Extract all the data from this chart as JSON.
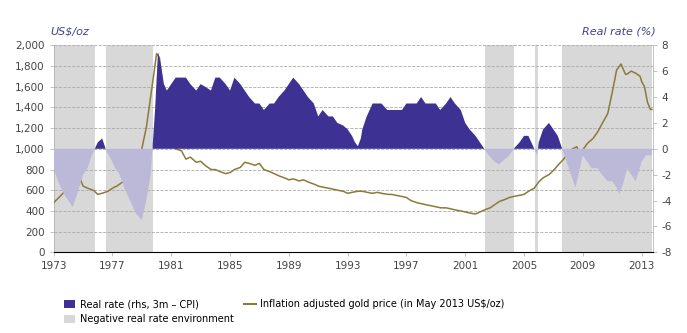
{
  "title_left": "US$/oz",
  "title_right": "Real rate (%)",
  "xlim": [
    1973,
    2013.75
  ],
  "ylim_left": [
    0,
    2000
  ],
  "ylim_right": [
    -8,
    8
  ],
  "yticks_left": [
    0,
    200,
    400,
    600,
    800,
    1000,
    1200,
    1400,
    1600,
    1800,
    2000
  ],
  "yticks_right": [
    -8,
    -6,
    -4,
    -2,
    0,
    2,
    4,
    6,
    8
  ],
  "xticks": [
    1973,
    1977,
    1981,
    1985,
    1989,
    1993,
    1997,
    2001,
    2005,
    2009,
    2013
  ],
  "background_color": "#ffffff",
  "grid_color": "#555555",
  "shaded_color": "#d8d8d8",
  "real_rate_pos_color": "#3d3194",
  "real_rate_neg_color": "#bbb8d8",
  "gold_line_color": "#8b7a3a",
  "legend_labels": [
    "Real rate (rhs, 3m – CPI)",
    "Negative real rate environment",
    "Inflation adjusted gold price (in May 2013 US$/oz)"
  ],
  "real_rate_control": [
    [
      1973.0,
      -1.5
    ],
    [
      1973.3,
      -2.5
    ],
    [
      1973.7,
      -3.5
    ],
    [
      1974.0,
      -4.0
    ],
    [
      1974.3,
      -4.5
    ],
    [
      1974.6,
      -3.5
    ],
    [
      1975.0,
      -2.0
    ],
    [
      1975.3,
      -1.5
    ],
    [
      1975.6,
      -0.5
    ],
    [
      1976.0,
      0.5
    ],
    [
      1976.3,
      0.8
    ],
    [
      1976.6,
      -0.2
    ],
    [
      1976.9,
      -0.8
    ],
    [
      1977.2,
      -1.5
    ],
    [
      1977.5,
      -2.0
    ],
    [
      1977.8,
      -3.0
    ],
    [
      1978.2,
      -4.0
    ],
    [
      1978.6,
      -5.0
    ],
    [
      1979.0,
      -5.5
    ],
    [
      1979.3,
      -4.0
    ],
    [
      1979.6,
      -2.0
    ],
    [
      1979.9,
      3.0
    ],
    [
      1980.1,
      7.5
    ],
    [
      1980.3,
      6.5
    ],
    [
      1980.5,
      5.0
    ],
    [
      1980.7,
      4.5
    ],
    [
      1981.0,
      5.0
    ],
    [
      1981.3,
      5.5
    ],
    [
      1981.6,
      5.5
    ],
    [
      1982.0,
      5.5
    ],
    [
      1982.3,
      5.0
    ],
    [
      1982.7,
      4.5
    ],
    [
      1983.0,
      5.0
    ],
    [
      1983.3,
      4.8
    ],
    [
      1983.7,
      4.5
    ],
    [
      1984.0,
      5.5
    ],
    [
      1984.3,
      5.5
    ],
    [
      1984.7,
      5.0
    ],
    [
      1985.0,
      4.5
    ],
    [
      1985.3,
      5.5
    ],
    [
      1985.7,
      5.0
    ],
    [
      1986.0,
      4.5
    ],
    [
      1986.3,
      4.0
    ],
    [
      1986.7,
      3.5
    ],
    [
      1987.0,
      3.5
    ],
    [
      1987.3,
      3.0
    ],
    [
      1987.7,
      3.5
    ],
    [
      1988.0,
      3.5
    ],
    [
      1988.3,
      4.0
    ],
    [
      1988.7,
      4.5
    ],
    [
      1989.0,
      5.0
    ],
    [
      1989.3,
      5.5
    ],
    [
      1989.7,
      5.0
    ],
    [
      1990.0,
      4.5
    ],
    [
      1990.3,
      4.0
    ],
    [
      1990.7,
      3.5
    ],
    [
      1991.0,
      2.5
    ],
    [
      1991.3,
      3.0
    ],
    [
      1991.7,
      2.5
    ],
    [
      1992.0,
      2.5
    ],
    [
      1992.3,
      2.0
    ],
    [
      1992.7,
      1.8
    ],
    [
      1993.0,
      1.5
    ],
    [
      1993.3,
      1.0
    ],
    [
      1993.5,
      0.5
    ],
    [
      1993.7,
      0.2
    ],
    [
      1993.9,
      0.8
    ],
    [
      1994.0,
      1.5
    ],
    [
      1994.3,
      2.5
    ],
    [
      1994.7,
      3.5
    ],
    [
      1995.0,
      3.5
    ],
    [
      1995.3,
      3.5
    ],
    [
      1995.7,
      3.0
    ],
    [
      1996.0,
      3.0
    ],
    [
      1996.3,
      3.0
    ],
    [
      1996.7,
      3.0
    ],
    [
      1997.0,
      3.5
    ],
    [
      1997.3,
      3.5
    ],
    [
      1997.7,
      3.5
    ],
    [
      1998.0,
      4.0
    ],
    [
      1998.3,
      3.5
    ],
    [
      1998.7,
      3.5
    ],
    [
      1999.0,
      3.5
    ],
    [
      1999.3,
      3.0
    ],
    [
      1999.7,
      3.5
    ],
    [
      2000.0,
      4.0
    ],
    [
      2000.3,
      3.5
    ],
    [
      2000.7,
      3.0
    ],
    [
      2001.0,
      2.0
    ],
    [
      2001.3,
      1.5
    ],
    [
      2001.7,
      1.0
    ],
    [
      2002.0,
      0.5
    ],
    [
      2002.3,
      0.0
    ],
    [
      2002.6,
      -0.5
    ],
    [
      2003.0,
      -1.0
    ],
    [
      2003.3,
      -1.2
    ],
    [
      2003.7,
      -0.8
    ],
    [
      2004.0,
      -0.5
    ],
    [
      2004.3,
      0.0
    ],
    [
      2004.7,
      0.5
    ],
    [
      2005.0,
      1.0
    ],
    [
      2005.3,
      1.0
    ],
    [
      2005.5,
      0.5
    ],
    [
      2005.7,
      0.0
    ],
    [
      2005.9,
      -0.5
    ],
    [
      2006.0,
      0.5
    ],
    [
      2006.3,
      1.5
    ],
    [
      2006.7,
      2.0
    ],
    [
      2007.0,
      1.5
    ],
    [
      2007.3,
      1.0
    ],
    [
      2007.6,
      0.0
    ],
    [
      2007.9,
      -1.0
    ],
    [
      2008.2,
      -2.0
    ],
    [
      2008.5,
      -3.0
    ],
    [
      2008.8,
      -1.5
    ],
    [
      2009.0,
      -0.5
    ],
    [
      2009.3,
      -1.0
    ],
    [
      2009.6,
      -1.5
    ],
    [
      2010.0,
      -1.5
    ],
    [
      2010.3,
      -2.0
    ],
    [
      2010.7,
      -2.5
    ],
    [
      2011.0,
      -2.5
    ],
    [
      2011.3,
      -3.0
    ],
    [
      2011.5,
      -3.5
    ],
    [
      2011.8,
      -2.5
    ],
    [
      2012.0,
      -1.5
    ],
    [
      2012.3,
      -2.0
    ],
    [
      2012.6,
      -2.5
    ],
    [
      2013.0,
      -1.0
    ],
    [
      2013.3,
      -0.5
    ],
    [
      2013.6,
      -0.5
    ]
  ],
  "gold_control": [
    [
      1973.0,
      480
    ],
    [
      1973.3,
      520
    ],
    [
      1973.7,
      580
    ],
    [
      1974.0,
      820
    ],
    [
      1974.3,
      860
    ],
    [
      1974.6,
      780
    ],
    [
      1975.0,
      640
    ],
    [
      1975.3,
      620
    ],
    [
      1975.7,
      600
    ],
    [
      1976.0,
      560
    ],
    [
      1976.3,
      570
    ],
    [
      1976.7,
      590
    ],
    [
      1977.0,
      620
    ],
    [
      1977.3,
      640
    ],
    [
      1977.7,
      680
    ],
    [
      1978.0,
      730
    ],
    [
      1978.3,
      800
    ],
    [
      1978.7,
      880
    ],
    [
      1979.0,
      1000
    ],
    [
      1979.3,
      1200
    ],
    [
      1979.6,
      1500
    ],
    [
      1980.0,
      1920
    ],
    [
      1980.2,
      1880
    ],
    [
      1980.4,
      1600
    ],
    [
      1980.7,
      1200
    ],
    [
      1981.0,
      1050
    ],
    [
      1981.3,
      1000
    ],
    [
      1981.7,
      980
    ],
    [
      1982.0,
      900
    ],
    [
      1982.3,
      920
    ],
    [
      1982.7,
      870
    ],
    [
      1983.0,
      880
    ],
    [
      1983.3,
      840
    ],
    [
      1983.7,
      800
    ],
    [
      1984.0,
      800
    ],
    [
      1984.3,
      780
    ],
    [
      1984.7,
      760
    ],
    [
      1985.0,
      770
    ],
    [
      1985.3,
      800
    ],
    [
      1985.7,
      820
    ],
    [
      1986.0,
      870
    ],
    [
      1986.3,
      860
    ],
    [
      1986.7,
      840
    ],
    [
      1987.0,
      860
    ],
    [
      1987.3,
      800
    ],
    [
      1987.7,
      780
    ],
    [
      1988.0,
      760
    ],
    [
      1988.3,
      740
    ],
    [
      1988.7,
      720
    ],
    [
      1989.0,
      700
    ],
    [
      1989.3,
      710
    ],
    [
      1989.7,
      690
    ],
    [
      1990.0,
      700
    ],
    [
      1990.3,
      680
    ],
    [
      1990.7,
      660
    ],
    [
      1991.0,
      640
    ],
    [
      1991.3,
      630
    ],
    [
      1991.7,
      620
    ],
    [
      1992.0,
      610
    ],
    [
      1992.3,
      600
    ],
    [
      1992.7,
      590
    ],
    [
      1993.0,
      570
    ],
    [
      1993.3,
      580
    ],
    [
      1993.7,
      590
    ],
    [
      1994.0,
      590
    ],
    [
      1994.3,
      580
    ],
    [
      1994.7,
      570
    ],
    [
      1995.0,
      580
    ],
    [
      1995.3,
      570
    ],
    [
      1995.7,
      560
    ],
    [
      1996.0,
      560
    ],
    [
      1996.3,
      550
    ],
    [
      1996.7,
      540
    ],
    [
      1997.0,
      530
    ],
    [
      1997.3,
      500
    ],
    [
      1997.7,
      480
    ],
    [
      1998.0,
      470
    ],
    [
      1998.3,
      460
    ],
    [
      1998.7,
      450
    ],
    [
      1999.0,
      440
    ],
    [
      1999.3,
      430
    ],
    [
      1999.7,
      430
    ],
    [
      2000.0,
      420
    ],
    [
      2000.3,
      410
    ],
    [
      2000.7,
      400
    ],
    [
      2001.0,
      390
    ],
    [
      2001.3,
      380
    ],
    [
      2001.7,
      370
    ],
    [
      2002.0,
      390
    ],
    [
      2002.3,
      410
    ],
    [
      2002.7,
      430
    ],
    [
      2003.0,
      460
    ],
    [
      2003.3,
      490
    ],
    [
      2003.7,
      510
    ],
    [
      2004.0,
      530
    ],
    [
      2004.3,
      540
    ],
    [
      2004.7,
      550
    ],
    [
      2005.0,
      560
    ],
    [
      2005.3,
      590
    ],
    [
      2005.7,
      620
    ],
    [
      2006.0,
      680
    ],
    [
      2006.3,
      720
    ],
    [
      2006.7,
      750
    ],
    [
      2007.0,
      790
    ],
    [
      2007.3,
      840
    ],
    [
      2007.7,
      900
    ],
    [
      2008.0,
      960
    ],
    [
      2008.3,
      1000
    ],
    [
      2008.6,
      1020
    ],
    [
      2008.8,
      940
    ],
    [
      2009.0,
      990
    ],
    [
      2009.3,
      1050
    ],
    [
      2009.7,
      1100
    ],
    [
      2010.0,
      1160
    ],
    [
      2010.3,
      1240
    ],
    [
      2010.7,
      1340
    ],
    [
      2011.0,
      1540
    ],
    [
      2011.3,
      1760
    ],
    [
      2011.6,
      1820
    ],
    [
      2011.9,
      1720
    ],
    [
      2012.0,
      1720
    ],
    [
      2012.3,
      1750
    ],
    [
      2012.6,
      1730
    ],
    [
      2012.9,
      1700
    ],
    [
      2013.0,
      1650
    ],
    [
      2013.2,
      1600
    ],
    [
      2013.4,
      1450
    ],
    [
      2013.6,
      1380
    ]
  ]
}
